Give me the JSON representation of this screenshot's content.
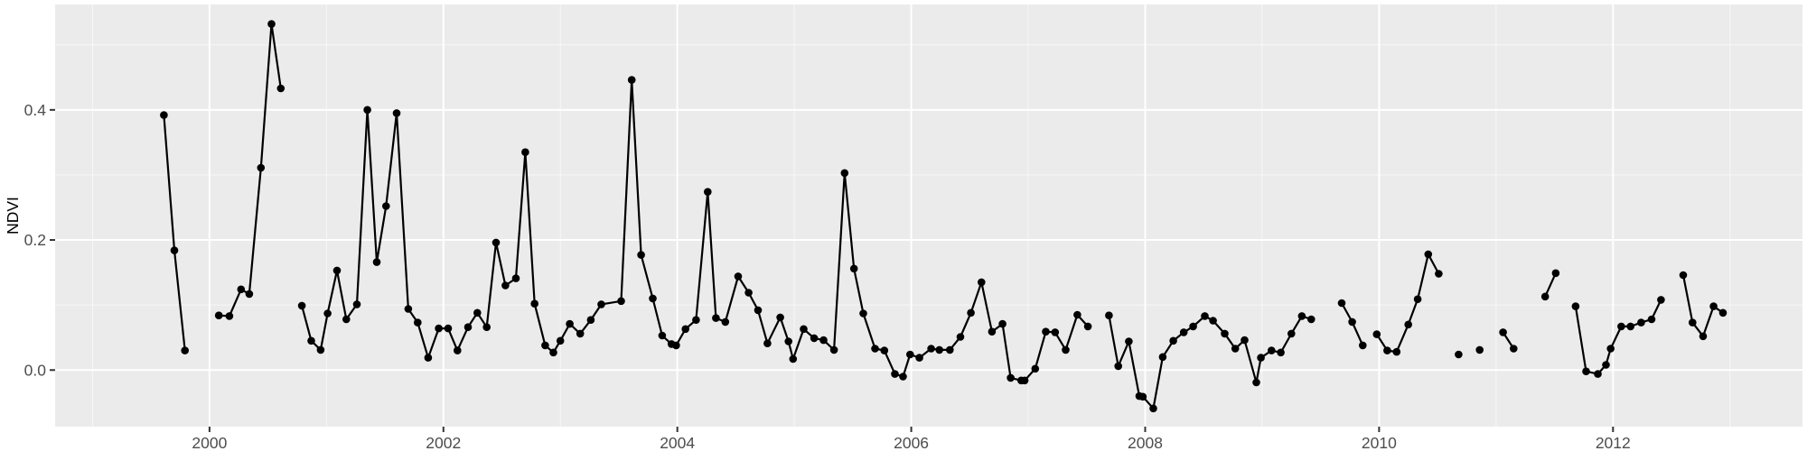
{
  "chart_data": {
    "type": "line",
    "title": "",
    "xlabel": "",
    "ylabel": "NDVI",
    "legend_position": "none",
    "grid": true,
    "xlim": [
      1998.68,
      2013.62
    ],
    "ylim": [
      -0.087,
      0.562
    ],
    "x_ticks": [
      2000,
      2002,
      2004,
      2006,
      2008,
      2010,
      2012
    ],
    "x_tick_labels": [
      "2000",
      "2002",
      "2004",
      "2006",
      "2008",
      "2010",
      "2012"
    ],
    "x_minor_ticks": [
      1999,
      2001,
      2003,
      2005,
      2007,
      2009,
      2011,
      2013
    ],
    "y_ticks": [
      0.0,
      0.2,
      0.4
    ],
    "y_tick_labels": [
      "0.0",
      "0.2",
      "0.4"
    ],
    "y_minor_ticks": [
      0.1,
      0.3,
      0.5
    ],
    "colors": {
      "panel_background": "#EBEBEB",
      "grid_major": "#FFFFFF",
      "grid_minor": "#F7F7F7",
      "line": "#000000",
      "point": "#000000",
      "axis_text": "#4D4D4D",
      "axis_title": "#000000",
      "tick_mark": "#333333"
    },
    "series": [
      {
        "name": "NDVI",
        "segments": [
          [
            [
              1999.61,
              0.392
            ],
            [
              1999.7,
              0.184
            ],
            [
              1999.79,
              0.03
            ]
          ],
          [
            [
              2000.08,
              0.084
            ],
            [
              2000.17,
              0.083
            ],
            [
              2000.27,
              0.124
            ],
            [
              2000.34,
              0.117
            ],
            [
              2000.44,
              0.311
            ],
            [
              2000.53,
              0.532
            ],
            [
              2000.61,
              0.433
            ]
          ],
          [
            [
              2000.79,
              0.099
            ],
            [
              2000.87,
              0.045
            ],
            [
              2000.95,
              0.031
            ],
            [
              2001.01,
              0.087
            ],
            [
              2001.09,
              0.153
            ],
            [
              2001.17,
              0.078
            ],
            [
              2001.26,
              0.101
            ],
            [
              2001.35,
              0.4
            ],
            [
              2001.43,
              0.166
            ],
            [
              2001.51,
              0.252
            ],
            [
              2001.6,
              0.395
            ],
            [
              2001.7,
              0.094
            ],
            [
              2001.78,
              0.073
            ],
            [
              2001.87,
              0.019
            ],
            [
              2001.96,
              0.064
            ],
            [
              2002.04,
              0.064
            ],
            [
              2002.12,
              0.03
            ],
            [
              2002.21,
              0.066
            ],
            [
              2002.29,
              0.088
            ],
            [
              2002.37,
              0.066
            ],
            [
              2002.45,
              0.196
            ],
            [
              2002.53,
              0.13
            ],
            [
              2002.62,
              0.141
            ],
            [
              2002.7,
              0.335
            ],
            [
              2002.78,
              0.102
            ],
            [
              2002.87,
              0.038
            ],
            [
              2002.94,
              0.027
            ],
            [
              2003.0,
              0.045
            ],
            [
              2003.08,
              0.071
            ],
            [
              2003.17,
              0.056
            ],
            [
              2003.26,
              0.077
            ],
            [
              2003.35,
              0.101
            ],
            [
              2003.52,
              0.106
            ],
            [
              2003.61,
              0.446
            ],
            [
              2003.69,
              0.177
            ],
            [
              2003.79,
              0.11
            ],
            [
              2003.87,
              0.053
            ],
            [
              2003.95,
              0.04
            ],
            [
              2003.99,
              0.038
            ],
            [
              2004.07,
              0.063
            ],
            [
              2004.16,
              0.077
            ],
            [
              2004.26,
              0.274
            ],
            [
              2004.33,
              0.08
            ],
            [
              2004.41,
              0.074
            ],
            [
              2004.52,
              0.144
            ],
            [
              2004.61,
              0.119
            ],
            [
              2004.69,
              0.092
            ],
            [
              2004.77,
              0.041
            ],
            [
              2004.88,
              0.081
            ],
            [
              2004.95,
              0.044
            ],
            [
              2004.99,
              0.017
            ],
            [
              2005.08,
              0.063
            ],
            [
              2005.17,
              0.049
            ],
            [
              2005.25,
              0.046
            ],
            [
              2005.34,
              0.031
            ],
            [
              2005.43,
              0.303
            ],
            [
              2005.51,
              0.156
            ],
            [
              2005.59,
              0.087
            ],
            [
              2005.69,
              0.033
            ],
            [
              2005.77,
              0.03
            ],
            [
              2005.86,
              -0.006
            ],
            [
              2005.93,
              -0.01
            ],
            [
              2005.99,
              0.024
            ],
            [
              2006.07,
              0.019
            ],
            [
              2006.17,
              0.033
            ],
            [
              2006.24,
              0.031
            ],
            [
              2006.33,
              0.031
            ],
            [
              2006.42,
              0.051
            ],
            [
              2006.51,
              0.088
            ],
            [
              2006.6,
              0.135
            ],
            [
              2006.69,
              0.059
            ],
            [
              2006.78,
              0.071
            ],
            [
              2006.85,
              -0.012
            ],
            [
              2006.94,
              -0.016
            ],
            [
              2006.97,
              -0.016
            ],
            [
              2007.06,
              0.002
            ],
            [
              2007.15,
              0.059
            ],
            [
              2007.23,
              0.058
            ],
            [
              2007.32,
              0.031
            ],
            [
              2007.42,
              0.085
            ],
            [
              2007.51,
              0.067
            ]
          ],
          [
            [
              2007.69,
              0.084
            ],
            [
              2007.77,
              0.006
            ],
            [
              2007.86,
              0.044
            ],
            [
              2007.95,
              -0.04
            ],
            [
              2007.98,
              -0.041
            ],
            [
              2008.07,
              -0.059
            ],
            [
              2008.15,
              0.02
            ],
            [
              2008.24,
              0.045
            ],
            [
              2008.33,
              0.058
            ],
            [
              2008.41,
              0.067
            ],
            [
              2008.51,
              0.083
            ],
            [
              2008.58,
              0.076
            ],
            [
              2008.68,
              0.056
            ],
            [
              2008.77,
              0.033
            ],
            [
              2008.85,
              0.046
            ],
            [
              2008.95,
              -0.019
            ],
            [
              2008.99,
              0.019
            ],
            [
              2009.08,
              0.03
            ],
            [
              2009.16,
              0.027
            ],
            [
              2009.25,
              0.056
            ],
            [
              2009.34,
              0.083
            ],
            [
              2009.42,
              0.078
            ]
          ],
          [
            [
              2009.68,
              0.103
            ],
            [
              2009.77,
              0.074
            ],
            [
              2009.86,
              0.038
            ]
          ],
          [
            [
              2009.98,
              0.055
            ],
            [
              2010.07,
              0.03
            ],
            [
              2010.15,
              0.028
            ],
            [
              2010.25,
              0.07
            ],
            [
              2010.33,
              0.109
            ],
            [
              2010.42,
              0.178
            ],
            [
              2010.51,
              0.148
            ]
          ],
          [
            [
              2010.68,
              0.024
            ]
          ],
          [
            [
              2010.86,
              0.031
            ]
          ],
          [
            [
              2011.06,
              0.058
            ],
            [
              2011.15,
              0.033
            ]
          ],
          [
            [
              2011.42,
              0.113
            ],
            [
              2011.51,
              0.149
            ]
          ],
          [
            [
              2011.68,
              0.098
            ],
            [
              2011.77,
              -0.002
            ],
            [
              2011.87,
              -0.006
            ],
            [
              2011.94,
              0.008
            ],
            [
              2011.98,
              0.033
            ],
            [
              2012.07,
              0.067
            ],
            [
              2012.15,
              0.067
            ],
            [
              2012.24,
              0.073
            ],
            [
              2012.33,
              0.078
            ],
            [
              2012.41,
              0.108
            ]
          ],
          [
            [
              2012.6,
              0.146
            ],
            [
              2012.68,
              0.073
            ],
            [
              2012.77,
              0.052
            ],
            [
              2012.86,
              0.098
            ],
            [
              2012.94,
              0.088
            ]
          ]
        ]
      }
    ]
  }
}
